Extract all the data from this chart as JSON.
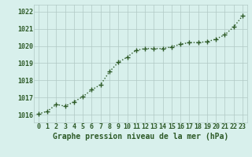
{
  "x": [
    0,
    1,
    2,
    3,
    4,
    5,
    6,
    7,
    8,
    9,
    10,
    11,
    12,
    13,
    14,
    15,
    16,
    17,
    18,
    19,
    20,
    21,
    22,
    23
  ],
  "y": [
    1016.05,
    1016.2,
    1016.6,
    1016.5,
    1016.75,
    1017.05,
    1017.45,
    1017.75,
    1018.5,
    1019.05,
    1019.35,
    1019.75,
    1019.85,
    1019.85,
    1019.85,
    1019.95,
    1020.1,
    1020.2,
    1020.2,
    1020.25,
    1020.4,
    1020.65,
    1021.1,
    1021.75
  ],
  "line_color": "#2d5a27",
  "marker": "P",
  "marker_size": 3,
  "line_width": 1.0,
  "bg_color": "#d8f0ec",
  "grid_color": "#b0c8c4",
  "xlabel": "Graphe pression niveau de la mer (hPa)",
  "xlabel_color": "#2d5a27",
  "xlabel_fontsize": 7,
  "tick_color": "#2d5a27",
  "tick_fontsize": 6,
  "ytick_labels": [
    "1016",
    "1017",
    "1018",
    "1019",
    "1020",
    "1021",
    "1022"
  ],
  "ytick_values": [
    1016,
    1017,
    1018,
    1019,
    1020,
    1021,
    1022
  ],
  "ylim": [
    1015.55,
    1022.4
  ],
  "xlim": [
    -0.5,
    23.5
  ],
  "xtick_labels": [
    "0",
    "1",
    "2",
    "3",
    "4",
    "5",
    "6",
    "7",
    "8",
    "9",
    "10",
    "11",
    "12",
    "13",
    "14",
    "15",
    "16",
    "17",
    "18",
    "19",
    "20",
    "21",
    "22",
    "23"
  ]
}
